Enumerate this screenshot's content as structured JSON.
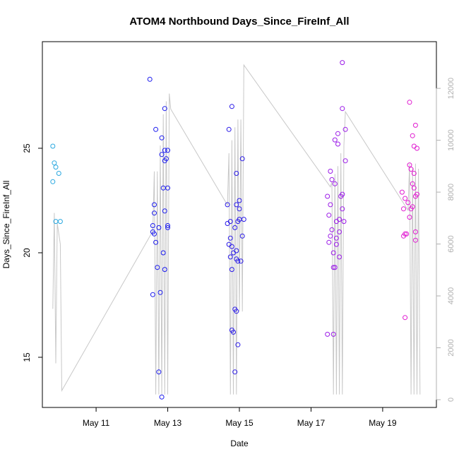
{
  "chart_data": {
    "type": "scatter",
    "title": "ATOM4 Northbound Days_Since_FireInf_All",
    "xlabel": "Date",
    "ylabel": "Days_Since_FireInf_All",
    "xlim": [
      "2014-05-09 12:00",
      "2014-05-20 12:00"
    ],
    "ylim": [
      12.6,
      30.1
    ],
    "y2lim": [
      -300,
      13800
    ],
    "x_ticks": [
      {
        "date": "2014-05-11",
        "label": "May 11"
      },
      {
        "date": "2014-05-13",
        "label": "May 13"
      },
      {
        "date": "2014-05-15",
        "label": "May 15"
      },
      {
        "date": "2014-05-17",
        "label": "May 17"
      },
      {
        "date": "2014-05-19",
        "label": "May 19"
      }
    ],
    "y_ticks": [
      {
        "value": 15,
        "label": "15"
      },
      {
        "value": 20,
        "label": "20"
      },
      {
        "value": 25,
        "label": "25"
      }
    ],
    "y2_ticks": [
      {
        "value": 0,
        "label": "0"
      },
      {
        "value": 2000,
        "label": "2000"
      },
      {
        "value": 4000,
        "label": "4000"
      },
      {
        "value": 6000,
        "label": "6000"
      },
      {
        "value": 8000,
        "label": "8000"
      },
      {
        "value": 10000,
        "label": "10000"
      },
      {
        "value": 12000,
        "label": "12000"
      }
    ],
    "grid": false,
    "legend": "none",
    "colors": {
      "points": [
        "#29a8e0",
        "#1a1aee",
        "#2a1ae8",
        "#9b1ae8",
        "#e01ad0"
      ],
      "line": "#c8c8c8",
      "box": "#000000",
      "right_axis": "#b0b0b0"
    },
    "series": [
      {
        "axis": "left",
        "marker": "open-circle",
        "points": [
          [
            "2014-05-09 19:00",
            25.1
          ],
          [
            "2014-05-09 20:00",
            24.3
          ],
          [
            "2014-05-09 21:00",
            24.1
          ],
          [
            "2014-05-09 23:00",
            23.8
          ],
          [
            "2014-05-09 19:00",
            23.4
          ],
          [
            "2014-05-09 21:00",
            21.5
          ],
          [
            "2014-05-10 00:00",
            21.5
          ],
          [
            "2014-05-12 12:00",
            28.3
          ],
          [
            "2014-05-12 22:00",
            26.9
          ],
          [
            "2014-05-12 16:00",
            25.9
          ],
          [
            "2014-05-12 20:00",
            25.5
          ],
          [
            "2014-05-12 22:00",
            24.9
          ],
          [
            "2014-05-13 00:00",
            24.9
          ],
          [
            "2014-05-12 20:00",
            24.7
          ],
          [
            "2014-05-12 23:00",
            24.5
          ],
          [
            "2014-05-12 22:00",
            24.4
          ],
          [
            "2014-05-12 21:00",
            23.1
          ],
          [
            "2014-05-13 00:00",
            23.1
          ],
          [
            "2014-05-12 15:00",
            22.3
          ],
          [
            "2014-05-12 22:00",
            22.0
          ],
          [
            "2014-05-12 15:00",
            21.9
          ],
          [
            "2014-05-12 14:00",
            21.3
          ],
          [
            "2014-05-12 18:00",
            21.2
          ],
          [
            "2014-05-13 00:00",
            21.3
          ],
          [
            "2014-05-13 00:00",
            21.2
          ],
          [
            "2014-05-12 14:00",
            21.0
          ],
          [
            "2014-05-12 15:00",
            20.9
          ],
          [
            "2014-05-12 16:00",
            20.5
          ],
          [
            "2014-05-12 21:00",
            20.0
          ],
          [
            "2014-05-12 17:00",
            19.3
          ],
          [
            "2014-05-12 22:00",
            19.2
          ],
          [
            "2014-05-12 19:00",
            18.1
          ],
          [
            "2014-05-12 14:00",
            18.0
          ],
          [
            "2014-05-12 18:00",
            14.3
          ],
          [
            "2014-05-12 20:00",
            13.1
          ],
          [
            "2014-05-14 19:00",
            27.0
          ],
          [
            "2014-05-14 17:00",
            25.9
          ],
          [
            "2014-05-14 22:00",
            23.8
          ],
          [
            "2014-05-14 16:00",
            22.3
          ],
          [
            "2014-05-14 22:00",
            22.3
          ],
          [
            "2014-05-15 00:00",
            22.5
          ],
          [
            "2014-05-15 02:00",
            24.5
          ],
          [
            "2014-05-14 18:00",
            21.5
          ],
          [
            "2014-05-14 16:00",
            21.4
          ],
          [
            "2014-05-14 21:00",
            21.2
          ],
          [
            "2014-05-14 23:00",
            21.5
          ],
          [
            "2014-05-15 00:00",
            21.6
          ],
          [
            "2014-05-15 03:00",
            21.6
          ],
          [
            "2014-05-15 00:00",
            22.1
          ],
          [
            "2014-05-14 18:00",
            20.7
          ],
          [
            "2014-05-14 17:00",
            20.4
          ],
          [
            "2014-05-14 19:00",
            20.3
          ],
          [
            "2014-05-14 20:00",
            20.0
          ],
          [
            "2014-05-14 22:00",
            20.1
          ],
          [
            "2014-05-15 02:00",
            20.8
          ],
          [
            "2014-05-14 18:00",
            19.8
          ],
          [
            "2014-05-14 22:00",
            19.7
          ],
          [
            "2014-05-14 23:00",
            19.6
          ],
          [
            "2014-05-15 01:00",
            19.6
          ],
          [
            "2014-05-14 19:00",
            19.2
          ],
          [
            "2014-05-14 21:00",
            17.3
          ],
          [
            "2014-05-14 22:00",
            17.2
          ],
          [
            "2014-05-14 19:00",
            16.3
          ],
          [
            "2014-05-14 20:00",
            16.2
          ],
          [
            "2014-05-14 23:00",
            15.6
          ],
          [
            "2014-05-14 21:00",
            14.3
          ],
          [
            "2014-05-17 21:00",
            29.1
          ],
          [
            "2014-05-17 21:00",
            26.9
          ],
          [
            "2014-05-17 23:00",
            25.9
          ],
          [
            "2014-05-17 18:00",
            25.7
          ],
          [
            "2014-05-17 16:00",
            25.4
          ],
          [
            "2014-05-17 18:00",
            25.2
          ],
          [
            "2014-05-17 23:00",
            24.4
          ],
          [
            "2014-05-17 13:00",
            23.9
          ],
          [
            "2014-05-17 14:00",
            23.5
          ],
          [
            "2014-05-17 16:00",
            23.3
          ],
          [
            "2014-05-17 21:00",
            22.8
          ],
          [
            "2014-05-17 20:00",
            22.7
          ],
          [
            "2014-05-17 11:00",
            22.7
          ],
          [
            "2014-05-17 13:00",
            22.3
          ],
          [
            "2014-05-17 21:00",
            22.1
          ],
          [
            "2014-05-17 12:00",
            21.8
          ],
          [
            "2014-05-17 19:00",
            21.6
          ],
          [
            "2014-05-17 22:00",
            21.5
          ],
          [
            "2014-05-17 17:00",
            21.5
          ],
          [
            "2014-05-17 14:00",
            21.1
          ],
          [
            "2014-05-17 19:00",
            21.0
          ],
          [
            "2014-05-17 13:00",
            20.8
          ],
          [
            "2014-05-17 17:00",
            20.7
          ],
          [
            "2014-05-17 12:00",
            20.5
          ],
          [
            "2014-05-17 17:00",
            20.4
          ],
          [
            "2014-05-17 15:00",
            20.0
          ],
          [
            "2014-05-17 19:00",
            19.8
          ],
          [
            "2014-05-17 16:00",
            19.3
          ],
          [
            "2014-05-17 15:00",
            19.3
          ],
          [
            "2014-05-17 11:00",
            16.1
          ],
          [
            "2014-05-17 15:00",
            16.1
          ],
          [
            "2014-05-19 18:00",
            27.2
          ],
          [
            "2014-05-19 22:00",
            26.1
          ],
          [
            "2014-05-19 20:00",
            25.6
          ],
          [
            "2014-05-19 21:00",
            25.1
          ],
          [
            "2014-05-19 23:00",
            25.0
          ],
          [
            "2014-05-19 18:00",
            24.2
          ],
          [
            "2014-05-19 19:00",
            24.0
          ],
          [
            "2014-05-19 21:00",
            23.8
          ],
          [
            "2014-05-19 20:00",
            23.3
          ],
          [
            "2014-05-19 21:00",
            23.1
          ],
          [
            "2014-05-19 13:00",
            22.9
          ],
          [
            "2014-05-19 23:00",
            22.8
          ],
          [
            "2014-05-19 22:00",
            22.7
          ],
          [
            "2014-05-19 15:00",
            22.6
          ],
          [
            "2014-05-19 17:00",
            22.4
          ],
          [
            "2014-05-19 20:00",
            22.2
          ],
          [
            "2014-05-19 19:00",
            22.1
          ],
          [
            "2014-05-19 14:00",
            22.1
          ],
          [
            "2014-05-19 18:00",
            21.7
          ],
          [
            "2014-05-19 22:00",
            21.0
          ],
          [
            "2014-05-19 14:00",
            20.8
          ],
          [
            "2014-05-19 16:00",
            20.9
          ],
          [
            "2014-05-19 15:00",
            20.9
          ],
          [
            "2014-05-19 22:00",
            20.6
          ],
          [
            "2014-05-19 15:00",
            16.9
          ]
        ]
      },
      {
        "axis": "right",
        "type": "line",
        "points": [
          [
            "2014-05-09 19:00",
            3500
          ],
          [
            "2014-05-09 20:00",
            7200
          ],
          [
            "2014-05-09 21:00",
            1400
          ],
          [
            "2014-05-09 22:00",
            6800
          ],
          [
            "2014-05-10 00:00",
            6000
          ],
          [
            "2014-05-10 01:00",
            350
          ],
          [
            "2014-05-12 14:00",
            6500
          ],
          [
            "2014-05-12 15:00",
            8800
          ],
          [
            "2014-05-12 16:00",
            200
          ],
          [
            "2014-05-12 17:00",
            8800
          ],
          [
            "2014-05-12 18:00",
            200
          ],
          [
            "2014-05-12 19:00",
            9800
          ],
          [
            "2014-05-12 20:00",
            200
          ],
          [
            "2014-05-12 21:00",
            11000
          ],
          [
            "2014-05-12 22:00",
            200
          ],
          [
            "2014-05-12 23:00",
            11500
          ],
          [
            "2014-05-13 00:00",
            200
          ],
          [
            "2014-05-13 01:00",
            11800
          ],
          [
            "2014-05-13 02:00",
            11200
          ],
          [
            "2014-05-14 16:00",
            7500
          ],
          [
            "2014-05-14 17:00",
            9500
          ],
          [
            "2014-05-14 18:00",
            200
          ],
          [
            "2014-05-14 19:00",
            10000
          ],
          [
            "2014-05-14 20:00",
            200
          ],
          [
            "2014-05-14 21:00",
            10500
          ],
          [
            "2014-05-14 22:00",
            200
          ],
          [
            "2014-05-14 23:00",
            10800
          ],
          [
            "2014-05-15 00:00",
            3400
          ],
          [
            "2014-05-15 01:00",
            10800
          ],
          [
            "2014-05-15 02:00",
            3400
          ],
          [
            "2014-05-15 03:00",
            12900
          ],
          [
            "2014-05-17 13:00",
            8200
          ],
          [
            "2014-05-17 14:00",
            8400
          ],
          [
            "2014-05-17 15:00",
            200
          ],
          [
            "2014-05-17 16:00",
            8700
          ],
          [
            "2014-05-17 17:00",
            200
          ],
          [
            "2014-05-17 18:00",
            9000
          ],
          [
            "2014-05-17 19:00",
            200
          ],
          [
            "2014-05-17 20:00",
            9500
          ],
          [
            "2014-05-17 21:00",
            200
          ],
          [
            "2014-05-17 22:00",
            9800
          ],
          [
            "2014-05-17 23:00",
            11100
          ],
          [
            "2014-05-19 17:00",
            7300
          ],
          [
            "2014-05-19 18:00",
            9100
          ],
          [
            "2014-05-19 19:00",
            200
          ],
          [
            "2014-05-19 20:00",
            8900
          ],
          [
            "2014-05-19 21:00",
            200
          ],
          [
            "2014-05-19 22:00",
            9100
          ],
          [
            "2014-05-19 23:00",
            200
          ],
          [
            "2014-05-20 00:00",
            8900
          ],
          [
            "2014-05-20 01:00",
            200
          ]
        ]
      }
    ]
  }
}
